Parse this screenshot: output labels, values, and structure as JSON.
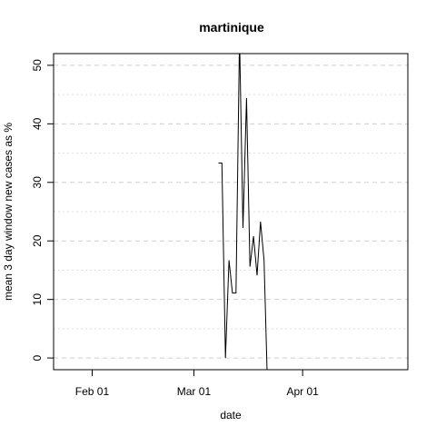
{
  "chart_data": {
    "type": "line",
    "title": "martinique",
    "xlabel": "date",
    "ylabel": "mean  3  day window new cases as %",
    "x_ticks": [
      {
        "date": "2020-02-01",
        "label": "Feb 01"
      },
      {
        "date": "2020-03-01",
        "label": "Mar 01"
      },
      {
        "date": "2020-04-01",
        "label": "Apr 01"
      }
    ],
    "y_ticks": [
      0,
      10,
      20,
      30,
      40,
      50
    ],
    "y_minor_gridlines": [
      5,
      15,
      25,
      35,
      45
    ],
    "xlim": [
      "2020-01-21",
      "2020-05-01"
    ],
    "ylim": [
      -2,
      52
    ],
    "grid": true,
    "series": [
      {
        "x": [
          "2020-03-08",
          "2020-03-09",
          "2020-03-10",
          "2020-03-11",
          "2020-03-12",
          "2020-03-13",
          "2020-03-14",
          "2020-03-15",
          "2020-03-16",
          "2020-03-17",
          "2020-03-18",
          "2020-03-19",
          "2020-03-20",
          "2020-03-21",
          "2020-03-22",
          "2020-03-23",
          "2020-03-24",
          "2020-03-25"
        ],
        "y": [
          33.3,
          33.3,
          0,
          16.7,
          11.1,
          11.1,
          55,
          22.2,
          44.4,
          15.6,
          20.8,
          14.1,
          23.3,
          16.7,
          -5,
          null,
          null,
          null
        ]
      }
    ]
  }
}
